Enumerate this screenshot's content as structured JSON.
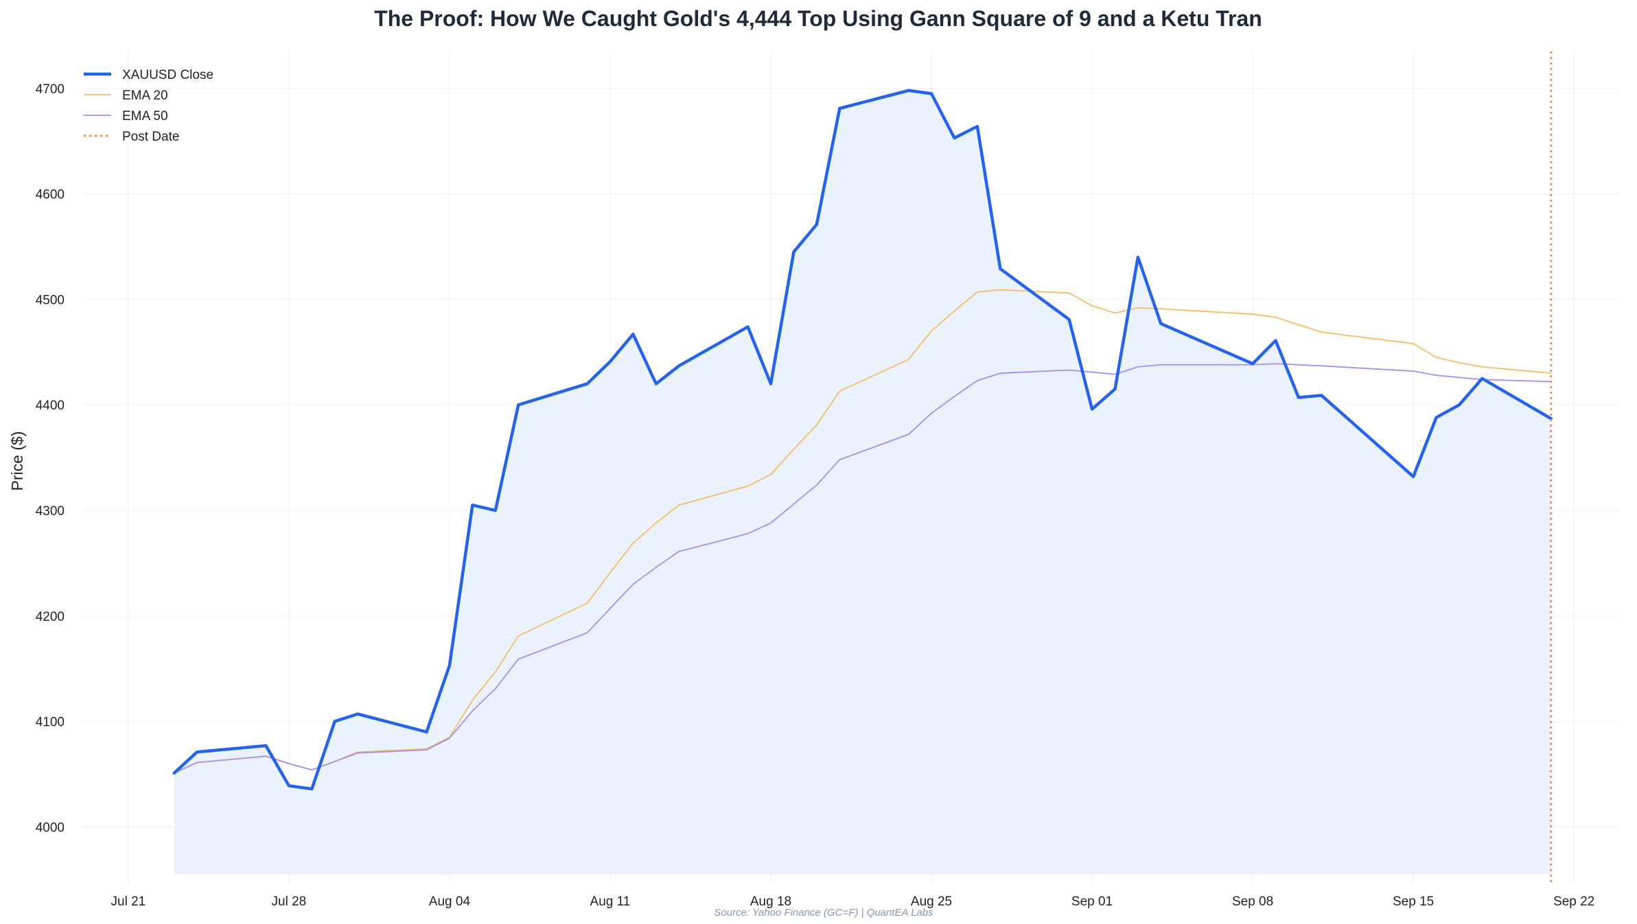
{
  "chart_data": {
    "type": "line",
    "title": "The Proof: How We Caught Gold's 4,444 Top Using Gann Square of 9 and a Ketu Tran",
    "xlabel": "",
    "ylabel": "Price ($)",
    "source": "Source: Yahoo Finance (GC=F) | QuantEA Labs",
    "x_ticks": [
      "Jul 21",
      "Jul 28",
      "Aug 04",
      "Aug 11",
      "Aug 18",
      "Aug 25",
      "Sep 01",
      "Sep 08",
      "Sep 15",
      "Sep 22"
    ],
    "y_ticks": [
      4000,
      4100,
      4200,
      4300,
      4400,
      4500,
      4600,
      4700
    ],
    "xlim": [
      "2025-07-19",
      "2025-09-24"
    ],
    "ylim": [
      3945,
      4735
    ],
    "grid": true,
    "legend_position": "top-left",
    "fill_baseline": 3955,
    "series": [
      {
        "name": "XAUUSD Close",
        "color": "#2563eb",
        "fill": "#eaf2fd",
        "dates": [
          "2025-07-23",
          "2025-07-24",
          "2025-07-27",
          "2025-07-28",
          "2025-07-29",
          "2025-07-30",
          "2025-07-31",
          "2025-08-03",
          "2025-08-04",
          "2025-08-05",
          "2025-08-06",
          "2025-08-07",
          "2025-08-10",
          "2025-08-11",
          "2025-08-12",
          "2025-08-13",
          "2025-08-14",
          "2025-08-17",
          "2025-08-18",
          "2025-08-19",
          "2025-08-20",
          "2025-08-21",
          "2025-08-24",
          "2025-08-25",
          "2025-08-26",
          "2025-08-27",
          "2025-08-28",
          "2025-08-31",
          "2025-09-01",
          "2025-09-02",
          "2025-09-03",
          "2025-09-04",
          "2025-09-08",
          "2025-09-09",
          "2025-09-10",
          "2025-09-11",
          "2025-09-15",
          "2025-09-16",
          "2025-09-17",
          "2025-09-18",
          "2025-09-21"
        ],
        "values": [
          4051,
          4071,
          4077,
          4039,
          4036,
          4100,
          4107,
          4090,
          4153,
          4305,
          4300,
          4400,
          4420,
          4441,
          4467,
          4420,
          4437,
          4474,
          4420,
          4545,
          4571,
          4681,
          4698,
          4695,
          4653,
          4664,
          4529,
          4481,
          4396,
          4415,
          4540,
          4477,
          4439,
          4461,
          4407,
          4409,
          4332,
          4388,
          4400,
          4425,
          4387
        ]
      },
      {
        "name": "EMA 20",
        "color": "#f6bd60",
        "dates": [
          "2025-07-23",
          "2025-07-24",
          "2025-07-27",
          "2025-07-28",
          "2025-07-29",
          "2025-07-30",
          "2025-07-31",
          "2025-08-03",
          "2025-08-04",
          "2025-08-05",
          "2025-08-06",
          "2025-08-07",
          "2025-08-10",
          "2025-08-11",
          "2025-08-12",
          "2025-08-13",
          "2025-08-14",
          "2025-08-17",
          "2025-08-18",
          "2025-08-19",
          "2025-08-20",
          "2025-08-21",
          "2025-08-24",
          "2025-08-25",
          "2025-08-26",
          "2025-08-27",
          "2025-08-28",
          "2025-08-31",
          "2025-09-01",
          "2025-09-02",
          "2025-09-03",
          "2025-09-04",
          "2025-09-08",
          "2025-09-09",
          "2025-09-10",
          "2025-09-11",
          "2025-09-15",
          "2025-09-16",
          "2025-09-17",
          "2025-09-18",
          "2025-09-21"
        ],
        "values": [
          4051,
          4061,
          4067,
          4060,
          4054,
          4062,
          4071,
          4074,
          4085,
          4120,
          4147,
          4181,
          4212,
          4241,
          4269,
          4288,
          4305,
          4323,
          4334,
          4358,
          4381,
          4413,
          4443,
          4470,
          4489,
          4507,
          4509,
          4506,
          4494,
          4487,
          4492,
          4491,
          4486,
          4483,
          4476,
          4469,
          4458,
          4445,
          4440,
          4436,
          4430
        ]
      },
      {
        "name": "EMA 50",
        "color": "#a78bfa",
        "dates": [
          "2025-07-23",
          "2025-07-24",
          "2025-07-27",
          "2025-07-28",
          "2025-07-29",
          "2025-07-30",
          "2025-07-31",
          "2025-08-03",
          "2025-08-04",
          "2025-08-05",
          "2025-08-06",
          "2025-08-07",
          "2025-08-10",
          "2025-08-11",
          "2025-08-12",
          "2025-08-13",
          "2025-08-14",
          "2025-08-17",
          "2025-08-18",
          "2025-08-19",
          "2025-08-20",
          "2025-08-21",
          "2025-08-24",
          "2025-08-25",
          "2025-08-26",
          "2025-08-27",
          "2025-08-28",
          "2025-08-31",
          "2025-09-01",
          "2025-09-02",
          "2025-09-03",
          "2025-09-04",
          "2025-09-08",
          "2025-09-09",
          "2025-09-10",
          "2025-09-11",
          "2025-09-15",
          "2025-09-16",
          "2025-09-17",
          "2025-09-18",
          "2025-09-21"
        ],
        "values": [
          4051,
          4061,
          4067,
          4060,
          4054,
          4062,
          4070,
          4073,
          4084,
          4110,
          4131,
          4159,
          4184,
          4207,
          4230,
          4246,
          4261,
          4278,
          4288,
          4306,
          4324,
          4348,
          4372,
          4392,
          4408,
          4423,
          4430,
          4433,
          4431,
          4429,
          4436,
          4438,
          4438,
          4439,
          4438,
          4437,
          4432,
          4428,
          4426,
          4424,
          4422
        ]
      }
    ],
    "post_date": {
      "name": "Post Date",
      "date": "2025-09-21",
      "color": "#f58a4b"
    }
  }
}
